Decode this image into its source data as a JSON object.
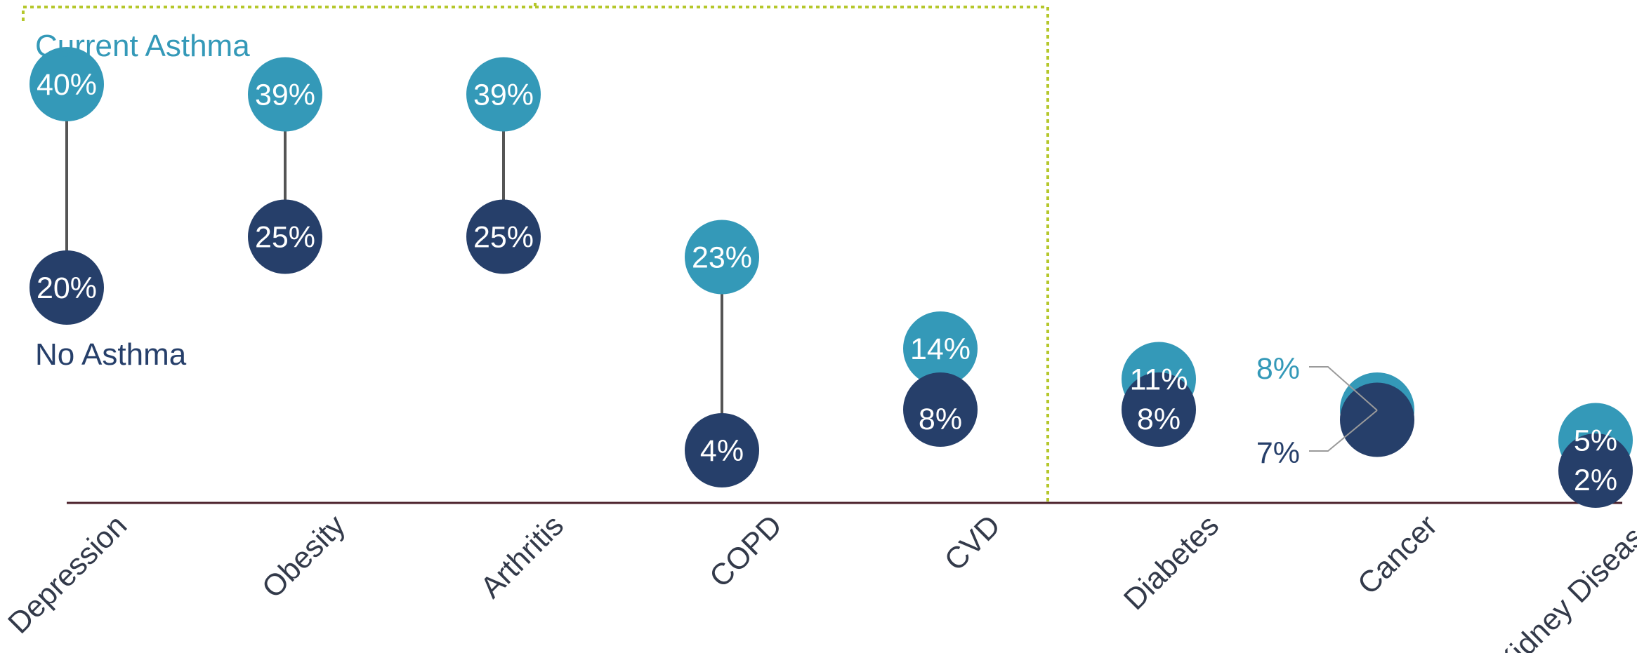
{
  "colors": {
    "current_asthma": "#3499b8",
    "no_asthma": "#263f6a",
    "bracket": "#b5c72b",
    "axis": "#4a1f2a",
    "connector": "#555555",
    "category_text": "#333a4a"
  },
  "legend": {
    "current_asthma": "Current Asthma",
    "no_asthma": "No Asthma"
  },
  "chart_data": {
    "type": "dumbbell",
    "categories": [
      "Depression",
      "Obesity",
      "Arthritis",
      "COPD",
      "CVD",
      "Diabetes",
      "Cancer",
      "Kidney Disease"
    ],
    "series": [
      {
        "name": "Current Asthma",
        "values": [
          40,
          39,
          39,
          23,
          14,
          11,
          8,
          5
        ],
        "labels": [
          "40%",
          "39%",
          "39%",
          "23%",
          "14%",
          "11%",
          "8%",
          "5%"
        ]
      },
      {
        "name": "No Asthma",
        "values": [
          20,
          25,
          25,
          4,
          8,
          8,
          7,
          2
        ],
        "labels": [
          "20%",
          "25%",
          "25%",
          "4%",
          "8%",
          "8%",
          "7%",
          "2%"
        ]
      }
    ],
    "ylim": [
      0,
      45
    ],
    "grid": false,
    "bracket_categories": [
      "Depression",
      "Obesity",
      "Arthritis",
      "COPD",
      "CVD"
    ]
  }
}
